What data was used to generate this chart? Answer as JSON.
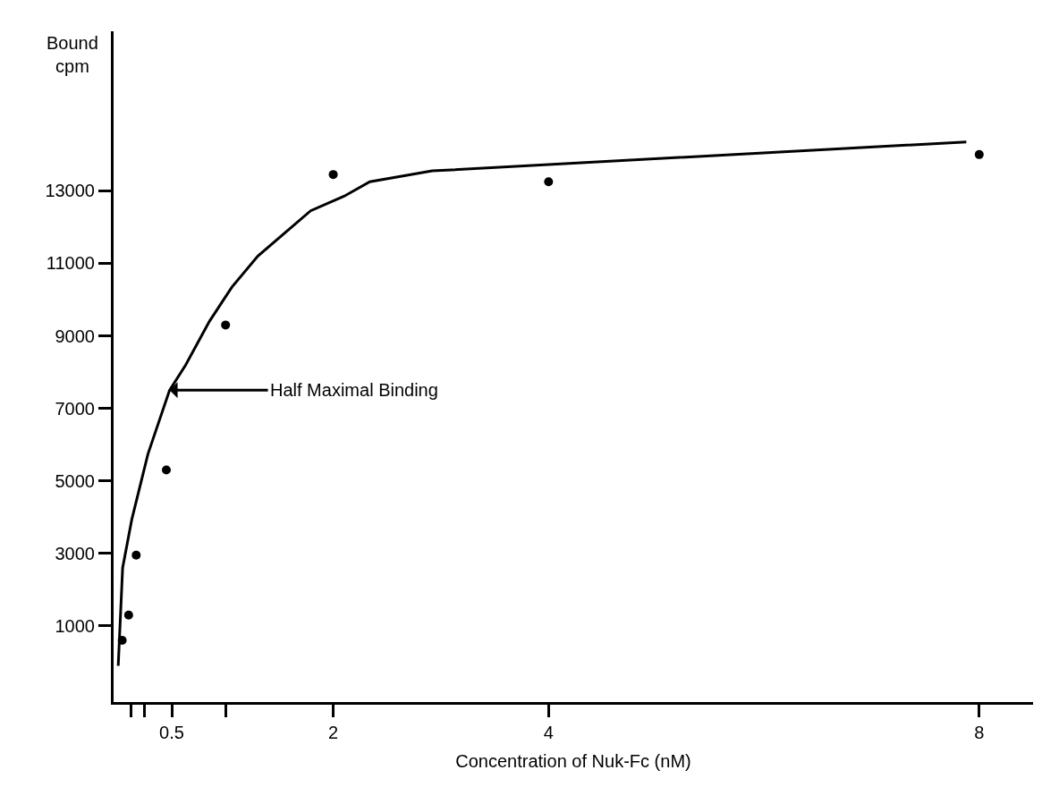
{
  "chart_data": {
    "type": "scatter",
    "xlabel": "Concentration of Nuk-Fc (nM)",
    "ylabel": "Bound\ncpm",
    "xlim": [
      -0.04,
      8.5
    ],
    "ylim": [
      -1100,
      17400
    ],
    "xticks": [
      {
        "value": 0.125,
        "label": null
      },
      {
        "value": 0.25,
        "label": null
      },
      0.5,
      {
        "value": 1,
        "label": null
      },
      2,
      4,
      8
    ],
    "yticks": [
      1000,
      3000,
      5000,
      7000,
      9000,
      11000,
      13000
    ],
    "legend": false,
    "series": [
      {
        "color": "#000000",
        "marker": "circle",
        "x": [
          0.04,
          0.1,
          0.17,
          0.45,
          1,
          2,
          4,
          8
        ],
        "values": [
          600,
          1300,
          2950,
          5300,
          9300,
          13450,
          13250,
          14000
        ]
      },
      {
        "type": "line",
        "color": "#000000",
        "marker": "none",
        "line_style": "solid",
        "x": [
          0.003,
          0.044,
          0.13,
          0.28,
          0.48,
          0.63,
          0.85,
          1.06,
          1.3,
          1.79,
          2.1,
          2.34,
          2.92,
          7.88
        ],
        "values": [
          -100,
          2600,
          3950,
          5750,
          7500,
          8200,
          9400,
          10350,
          11200,
          12450,
          12850,
          13250,
          13550,
          14350
        ]
      }
    ],
    "annotations": [
      {
        "text": "Half Maximal Binding",
        "x": 0.48,
        "y": 7500
      }
    ]
  }
}
